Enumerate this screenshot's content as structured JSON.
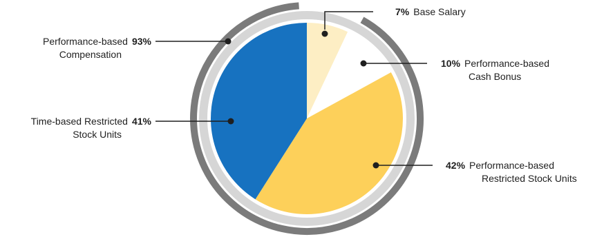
{
  "chart_data": {
    "type": "pie",
    "slices": [
      {
        "label": "Base Salary",
        "percent_text": "7%",
        "value": 7,
        "color": "#fdeec4"
      },
      {
        "label": "Performance-based Cash Bonus",
        "percent_text": "10%",
        "value": 10,
        "color": "#ffffff"
      },
      {
        "label": "Performance-based Restricted Stock Units",
        "percent_text": "42%",
        "value": 42,
        "color": "#fdd05a"
      },
      {
        "label": "Time-based Restricted Stock Units",
        "percent_text": "41%",
        "value": 41,
        "color": "#1772c0"
      }
    ],
    "group": {
      "label": "Performance-based Compensation",
      "percent_text": "93%",
      "value": 93
    },
    "labels": {
      "base_salary": {
        "pct": "7%",
        "lines": [
          "Base Salary"
        ]
      },
      "cash_bonus": {
        "pct": "10%",
        "lines": [
          "Performance-based",
          "Cash Bonus"
        ]
      },
      "psu": {
        "pct": "42%",
        "lines": [
          "Performance-based",
          "Restricted Stock Units"
        ]
      },
      "rsu": {
        "pct": "41%",
        "lines": [
          "Time-based Restricted",
          "Stock Units"
        ]
      },
      "perf_comp": {
        "pct": "93%",
        "lines": [
          "Performance-based",
          "Compensation"
        ]
      }
    },
    "ring_colors": {
      "outer_track": "#d6d6d6",
      "performance_arc": "#7b7b7b"
    }
  }
}
